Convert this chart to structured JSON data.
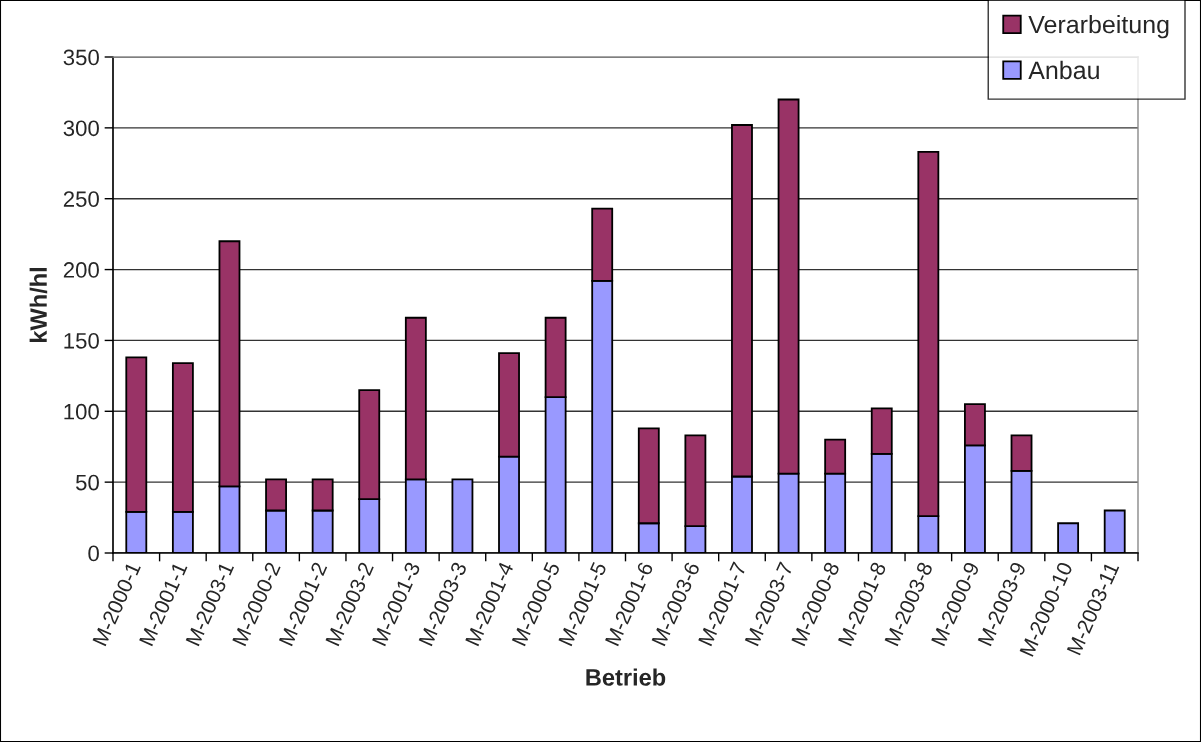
{
  "chart_data": {
    "type": "bar",
    "stacked": true,
    "xlabel": "Betrieb",
    "ylabel": "kWh/hl",
    "categories": [
      "M-2000-1",
      "M-2001-1",
      "M-2003-1",
      "M-2000-2",
      "M-2001-2",
      "M-2003-2",
      "M-2001-3",
      "M-2003-3",
      "M-2001-4",
      "M-2000-5",
      "M-2001-5",
      "M-2001-6",
      "M-2003-6",
      "M-2001-7",
      "M-2003-7",
      "M-2000-8",
      "M-2001-8",
      "M-2003-8",
      "M-2000-9",
      "M-2003-9",
      "M-2000-10",
      "M-2003-11"
    ],
    "series": [
      {
        "name": "Anbau",
        "color": "#9999ff",
        "values": [
          29,
          29,
          47,
          30,
          30,
          38,
          52,
          52,
          68,
          110,
          192,
          21,
          19,
          54,
          56,
          56,
          70,
          26,
          76,
          58,
          21,
          30
        ]
      },
      {
        "name": "Verarbeitung",
        "color": "#993366",
        "values": [
          109,
          105,
          173,
          22,
          22,
          77,
          114,
          null,
          73,
          56,
          51,
          67,
          64,
          248,
          264,
          24,
          32,
          257,
          29,
          25,
          null,
          null
        ]
      }
    ],
    "ylim": [
      0,
      350
    ],
    "yticks": [
      0,
      50,
      100,
      150,
      200,
      250,
      300,
      350
    ],
    "grid": "y",
    "legend": "top right"
  }
}
